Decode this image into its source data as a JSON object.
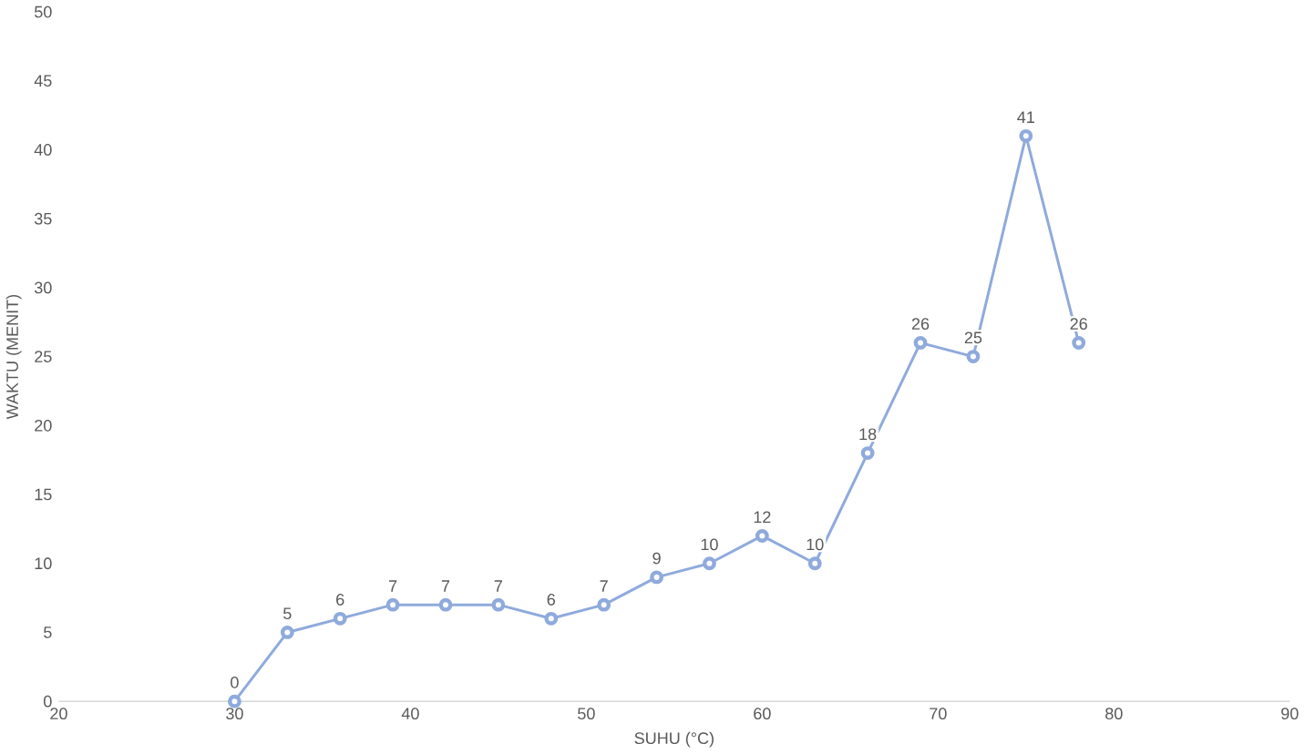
{
  "chart_data": {
    "type": "line",
    "xlabel": "SUHU (°C)",
    "ylabel": "WAKTU (MENIT)",
    "series": [
      {
        "color": "#8faadc",
        "x": [
          30,
          33,
          36,
          39,
          42,
          45,
          48,
          51,
          54,
          57,
          60,
          63,
          66,
          69,
          72,
          75,
          78
        ],
        "values": [
          0,
          5,
          6,
          7,
          7,
          7,
          6,
          7,
          9,
          10,
          12,
          10,
          18,
          26,
          25,
          41,
          26
        ]
      }
    ],
    "xlim": [
      20,
      90
    ],
    "xticks": [
      20,
      30,
      40,
      50,
      60,
      70,
      80,
      90
    ],
    "ylim": [
      0,
      50
    ],
    "yticks": [
      0,
      5,
      10,
      15,
      20,
      25,
      30,
      35,
      40,
      45,
      50
    ],
    "data_labels": true,
    "marker": "circle",
    "line_style": "solid"
  }
}
